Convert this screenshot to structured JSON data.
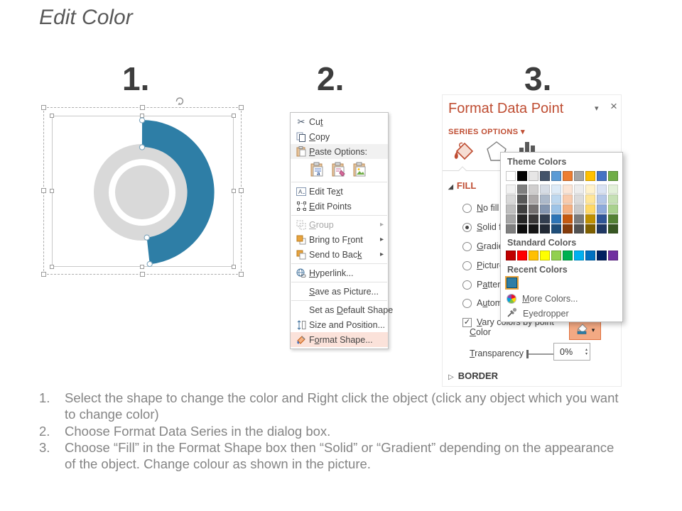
{
  "slide": {
    "title": "Edit Color",
    "steps": [
      "1.",
      "2.",
      "3."
    ]
  },
  "chart": {
    "donut_color": "#D9D9D9",
    "arc_color": "#2E7EA6"
  },
  "context_menu": {
    "items": [
      {
        "pre": "Cu",
        "u": "t",
        "post": ""
      },
      {
        "pre": "",
        "u": "C",
        "post": "opy"
      },
      {
        "pre": "",
        "u": "P",
        "post": "aste Options:"
      },
      {
        "pre": "Edit Te",
        "u": "x",
        "post": "t"
      },
      {
        "pre": "",
        "u": "E",
        "post": "dit Points"
      },
      {
        "pre": "",
        "u": "G",
        "post": "roup"
      },
      {
        "pre": "Bring to F",
        "u": "r",
        "post": "ont"
      },
      {
        "pre": "Send to Bac",
        "u": "k",
        "post": ""
      },
      {
        "pre": "",
        "u": "H",
        "post": "yperlink..."
      },
      {
        "pre": "",
        "u": "S",
        "post": "ave as Picture..."
      },
      {
        "pre": "Set as ",
        "u": "D",
        "post": "efault Shape"
      },
      {
        "pre": "Size and Position...",
        "u": "",
        "post": ""
      },
      {
        "pre": "F",
        "u": "o",
        "post": "rmat Shape..."
      }
    ],
    "submenu_arrow": "▸"
  },
  "panel": {
    "title": "Format Data Point",
    "caret": "▾",
    "close": "×",
    "series_options": "SERIES OPTIONS",
    "series_caret": "▾",
    "fill_header": "FILL",
    "fill_tri": "◢",
    "border_header": "BORDER",
    "border_tri": "▷",
    "radios": [
      {
        "pre": "",
        "u": "N",
        "post": "o fill",
        "selected": false
      },
      {
        "pre": "",
        "u": "S",
        "post": "olid fill",
        "selected": true
      },
      {
        "pre": "",
        "u": "G",
        "post": "radient fill",
        "selected": false
      },
      {
        "pre": "",
        "u": "P",
        "post": "icture or texture fill",
        "selected": false
      },
      {
        "pre": "P",
        "u": "a",
        "post": "ttern fill",
        "selected": false
      },
      {
        "pre": "A",
        "u": "u",
        "post": "tomatic",
        "selected": false
      }
    ],
    "checkbox": {
      "pre": "",
      "u": "V",
      "post": "ary colors by point",
      "checked": "✓"
    },
    "color_label": {
      "pre": "",
      "u": "C",
      "post": "olor"
    },
    "color_dd": "▾",
    "transparency_label": {
      "pre": "",
      "u": "T",
      "post": "ransparency"
    },
    "transparency_value": "0%",
    "spin_up": "▴",
    "spin_down": "▾"
  },
  "popup": {
    "theme_header": "Theme Colors",
    "standard_header": "Standard Colors",
    "recent_header": "Recent Colors",
    "more_colors": {
      "pre": "",
      "u": "M",
      "post": "ore Colors..."
    },
    "eyedropper": "Eyedropper",
    "theme_main": [
      "#FFFFFF",
      "#000000",
      "#E7E6E6",
      "#44546A",
      "#5B9BD5",
      "#ED7D31",
      "#A5A5A5",
      "#FFC000",
      "#4472C4",
      "#70AD47"
    ],
    "theme_variants": [
      [
        "#F2F2F2",
        "#7F7F7F",
        "#D0CECE",
        "#D6DCE5",
        "#DEEBF7",
        "#FBE5D6",
        "#EDEDED",
        "#FFF2CC",
        "#DAE3F3",
        "#E2F0D9"
      ],
      [
        "#D9D9D9",
        "#595959",
        "#AEAAAA",
        "#ACB9CA",
        "#BDD7EE",
        "#F8CBAD",
        "#DBDBDB",
        "#FFE699",
        "#B4C7E7",
        "#C5E0B4"
      ],
      [
        "#BFBFBF",
        "#404040",
        "#757171",
        "#8496B0",
        "#9DC3E6",
        "#F4B183",
        "#C9C9C9",
        "#FFD966",
        "#8EAADB",
        "#A9D18E"
      ],
      [
        "#A6A6A6",
        "#262626",
        "#3A3838",
        "#333F50",
        "#2E75B6",
        "#C55A11",
        "#7B7B7B",
        "#BF9000",
        "#2F5597",
        "#548235"
      ],
      [
        "#7F7F7F",
        "#0D0D0D",
        "#161616",
        "#222A35",
        "#1F4E79",
        "#843C0C",
        "#525252",
        "#7F6000",
        "#203864",
        "#385723"
      ]
    ],
    "standard": [
      "#C00000",
      "#FF0000",
      "#FFC000",
      "#FFFF00",
      "#92D050",
      "#00B050",
      "#00B0F0",
      "#0070C0",
      "#002060",
      "#7030A0"
    ],
    "recent": [
      "#2E7EA6"
    ]
  },
  "footer": {
    "numbers": [
      "1.",
      "2.",
      "3."
    ],
    "items": [
      "Select the shape to change the color and Right click the object (click any object which you want to change color)",
      "Choose Format Data Series in the dialog box.",
      "Choose “Fill” in the Format Shape box then “Solid” or “Gradient” depending on the appearance of the object. Change colour as shown in the picture."
    ]
  }
}
